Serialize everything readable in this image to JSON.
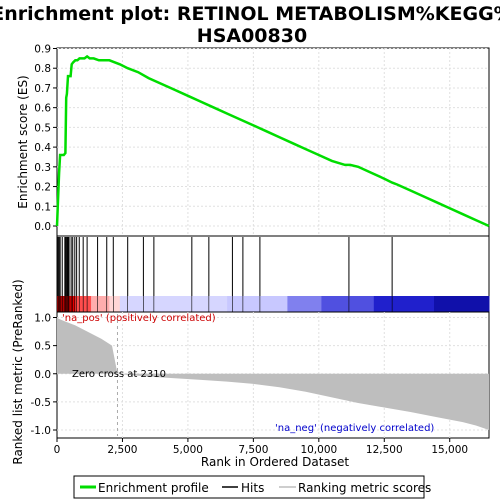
{
  "chart_data": [
    {
      "type": "line",
      "title": "Enrichment plot: RETINOL METABOLISM%KEGG%\nHSA00830",
      "ylabel": "Enrichment score (ES)",
      "ylim": [
        -0.02,
        0.9
      ],
      "xlim": [
        0,
        16500
      ],
      "y_ticks": [
        "0.0",
        "0.1",
        "0.2",
        "0.3",
        "0.4",
        "0.5",
        "0.6",
        "0.7",
        "0.8",
        "0.9"
      ],
      "grid": true,
      "series": [
        {
          "name": "Enrichment profile",
          "color": "#00dd00",
          "x": [
            0,
            40,
            80,
            120,
            160,
            200,
            260,
            320,
            350,
            380,
            420,
            460,
            520,
            560,
            620,
            700,
            780,
            860,
            950,
            1050,
            1150,
            1250,
            1400,
            1600,
            1800,
            2000,
            2200,
            2400,
            2700,
            3100,
            3500,
            4000,
            4500,
            5000,
            5500,
            6000,
            6500,
            7000,
            7500,
            8000,
            8500,
            9000,
            9500,
            10000,
            10500,
            11000,
            11200,
            11500,
            12000,
            12500,
            12800,
            13000,
            13500,
            14000,
            14500,
            15000,
            15500,
            16000,
            16500
          ],
          "y": [
            0.0,
            0.13,
            0.27,
            0.36,
            0.36,
            0.36,
            0.36,
            0.37,
            0.65,
            0.67,
            0.76,
            0.76,
            0.76,
            0.82,
            0.83,
            0.84,
            0.84,
            0.85,
            0.85,
            0.85,
            0.86,
            0.85,
            0.85,
            0.84,
            0.84,
            0.84,
            0.83,
            0.82,
            0.8,
            0.78,
            0.75,
            0.72,
            0.69,
            0.66,
            0.63,
            0.6,
            0.57,
            0.54,
            0.51,
            0.48,
            0.45,
            0.42,
            0.39,
            0.36,
            0.33,
            0.31,
            0.31,
            0.3,
            0.27,
            0.24,
            0.22,
            0.21,
            0.18,
            0.15,
            0.12,
            0.09,
            0.06,
            0.03,
            0.0
          ]
        }
      ]
    },
    {
      "type": "hits",
      "xlim": [
        0,
        16500
      ],
      "series": [
        {
          "name": "Hits",
          "color": "#000000",
          "x": [
            40,
            80,
            120,
            200,
            300,
            330,
            360,
            400,
            430,
            460,
            540,
            600,
            680,
            750,
            850,
            1000,
            1150,
            1550,
            1900,
            2150,
            2700,
            3300,
            3700,
            5150,
            5800,
            6700,
            7100,
            7750,
            11150,
            12800
          ]
        }
      ]
    },
    {
      "type": "area",
      "ylabel": "Ranked list metric (PreRanked)",
      "xlabel": "Rank in Ordered Dataset",
      "ylim": [
        -1.1,
        1.1
      ],
      "xlim": [
        0,
        16500
      ],
      "y_ticks": [
        "-1.0",
        "-0.5",
        "0.0",
        "0.5",
        "1.0"
      ],
      "x_ticks": [
        "0",
        "2,500",
        "5,000",
        "7,500",
        "10,000",
        "12,500",
        "15,000"
      ],
      "zero_cross_label": "Zero cross at 2310",
      "pos_label": "'na_pos' (positively correlated)",
      "neg_label": "'na_neg' (negatively correlated)",
      "series": [
        {
          "name": "Ranking metric scores",
          "color": "#bebebe",
          "x": [
            0,
            50,
            300,
            700,
            1200,
            1700,
            2100,
            2310,
            2700,
            3500,
            4500,
            5500,
            6500,
            7500,
            8500,
            9500,
            10500,
            11500,
            12500,
            13500,
            14500,
            15500,
            16000,
            16500
          ],
          "y": [
            1.0,
            0.98,
            0.93,
            0.86,
            0.74,
            0.62,
            0.5,
            0.0,
            -0.02,
            -0.05,
            -0.08,
            -0.11,
            -0.14,
            -0.18,
            -0.24,
            -0.32,
            -0.42,
            -0.52,
            -0.6,
            -0.68,
            -0.77,
            -0.86,
            -0.92,
            -1.0
          ]
        }
      ]
    }
  ],
  "legend": {
    "items": [
      {
        "label": "Enrichment profile",
        "color": "#00dd00"
      },
      {
        "label": "Hits",
        "color": "#000000"
      },
      {
        "label": "Ranking metric scores",
        "color": "#bebebe"
      }
    ]
  },
  "colors": {
    "pos_text": "#cc0000",
    "neg_text": "#0000cc",
    "grid": "#e0e0e0",
    "background": "#ffffff"
  },
  "heatmap_band": {
    "stops": [
      "#b30000",
      "#e60000",
      "#ff4d4d",
      "#ffadad",
      "#ffd6d6",
      "#d6d6ff",
      "#c8c8ff",
      "#8080ee",
      "#5050e0",
      "#2020cc",
      "#1010aa"
    ]
  }
}
